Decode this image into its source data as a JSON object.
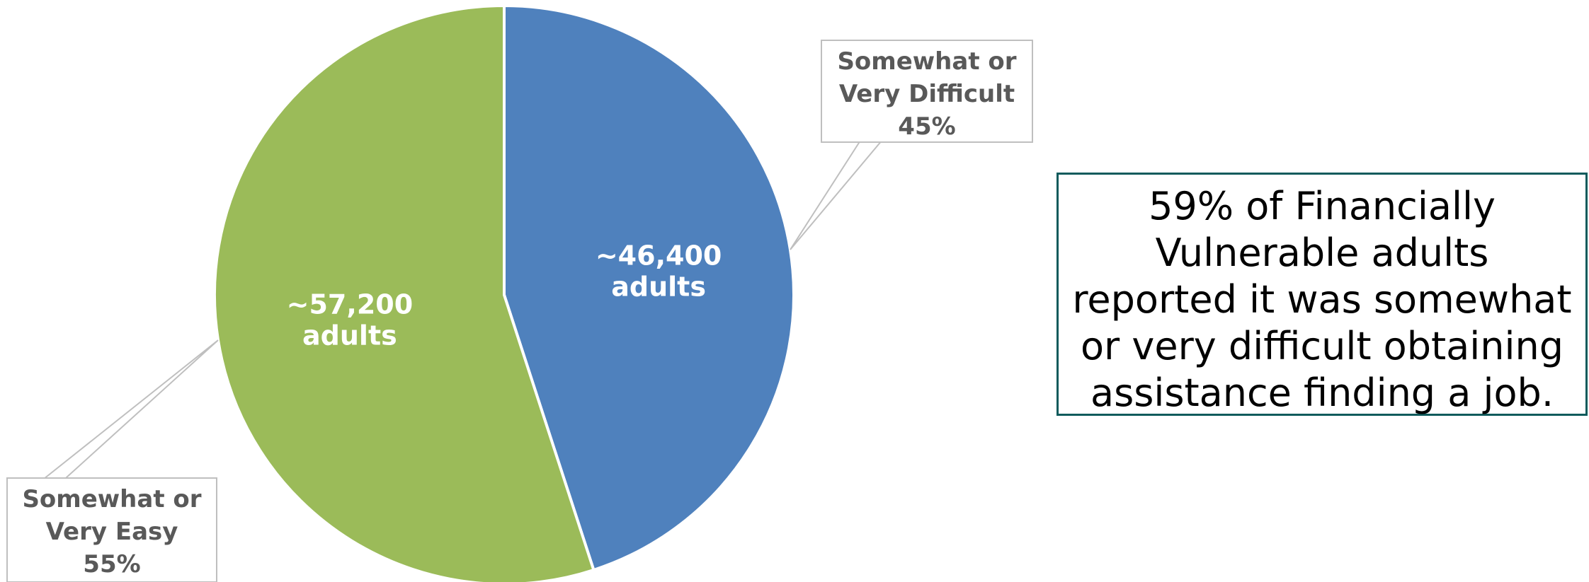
{
  "chart_data": {
    "type": "pie",
    "slices": [
      {
        "category_line1": "Somewhat or",
        "category_line2": "Very Difficult",
        "percent": 45,
        "percent_label": "45%",
        "value_line1": "~46,400",
        "value_line2": "adults",
        "color": "#4f81bd"
      },
      {
        "category_line1": "Somewhat or",
        "category_line2": "Very Easy",
        "percent": 55,
        "percent_label": "55%",
        "value_line1": "~57,200",
        "value_line2": "adults",
        "color": "#9bbb59"
      }
    ],
    "start_angle": "12 o'clock",
    "direction": "clockwise",
    "label_color": "#595959",
    "leader_color": "#bfbfbf",
    "legend": "none"
  },
  "callout": {
    "lines": [
      "59% of Financially",
      "Vulnerable adults",
      "reported it was somewhat",
      "or very difficult obtaining",
      "assistance finding a job."
    ],
    "border_color": "#0f5b5c"
  }
}
